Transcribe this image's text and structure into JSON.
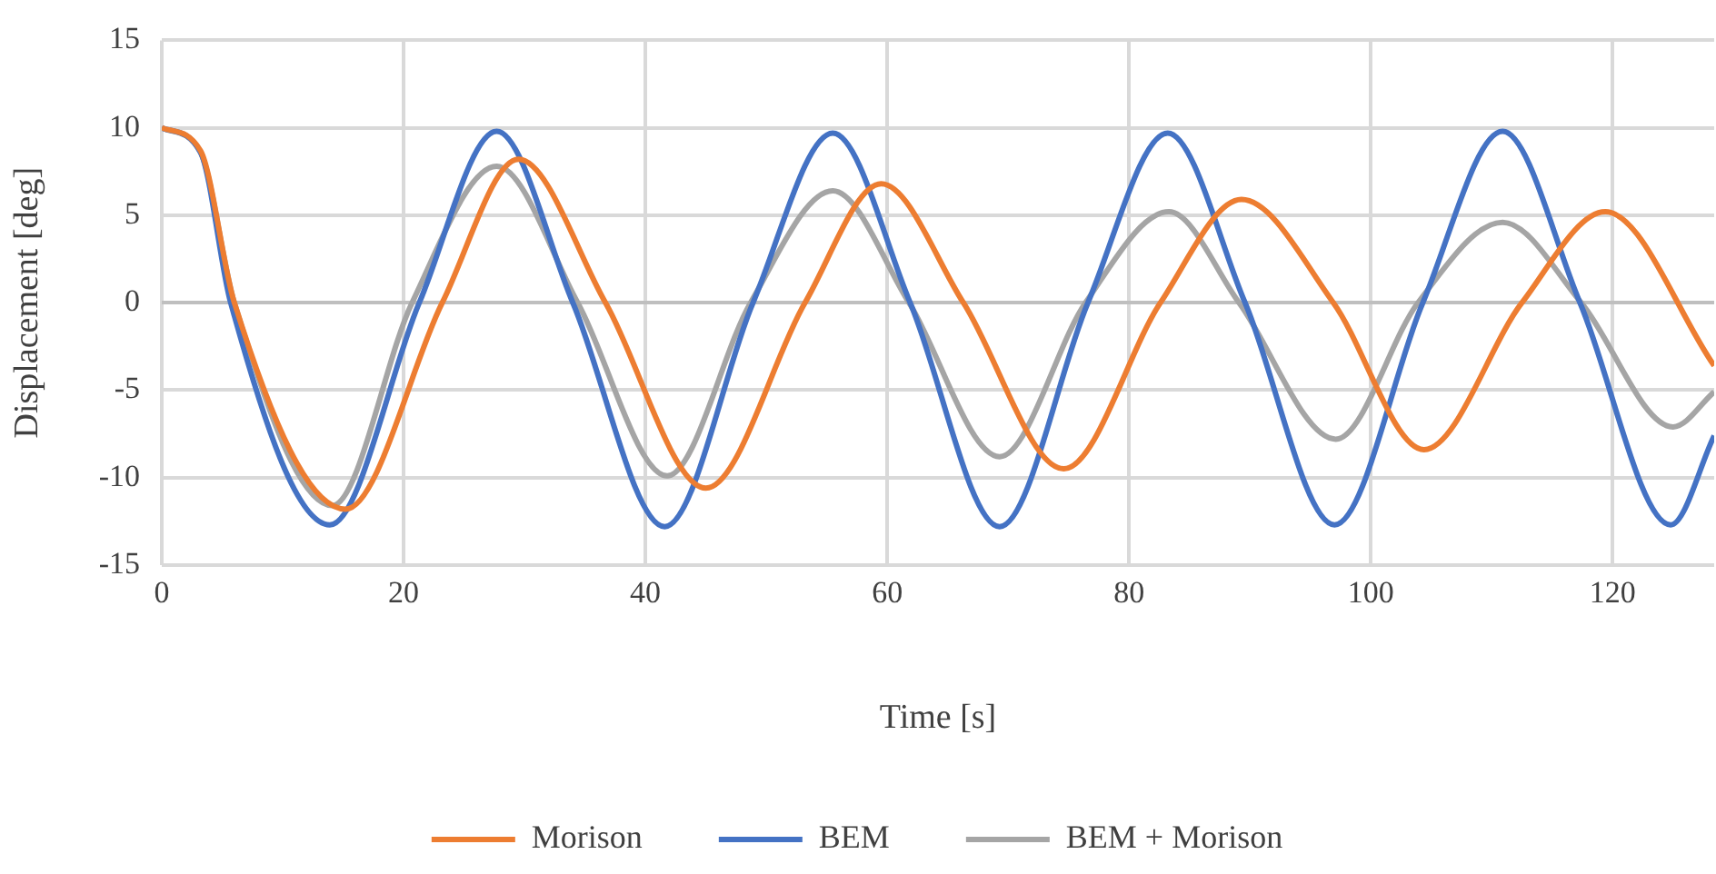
{
  "chart_data": {
    "type": "line",
    "xlabel": "Time [s]",
    "ylabel": "Displacement [deg]",
    "xlim": [
      0,
      128.4
    ],
    "xticks": [
      0,
      20,
      40,
      60,
      80,
      100,
      120
    ],
    "ylim": [
      -15,
      15
    ],
    "yticks": [
      -15,
      -10,
      -5,
      0,
      5,
      10,
      15
    ],
    "grid": true,
    "legend": "bottom",
    "marker": "none",
    "line_style": "solid",
    "series": [
      {
        "name": "Morison",
        "color": "#ed7d31",
        "x": [
          0,
          3.2,
          6.0,
          15.2,
          23.2,
          29.5,
          36.7,
          45.0,
          53.2,
          59.5,
          66.3,
          74.6,
          82.6,
          89.3,
          96.9,
          104.4,
          112.5,
          119.4,
          128.4
        ],
        "values": [
          10,
          8.7,
          0,
          -11.8,
          0,
          8.2,
          0,
          -10.6,
          0,
          6.8,
          0,
          -9.5,
          0,
          5.9,
          0,
          -8.4,
          0,
          5.2,
          -3.6
        ]
      },
      {
        "name": "BEM",
        "color": "#4472c4",
        "x": [
          0,
          3.2,
          5.7,
          13.9,
          21.3,
          27.7,
          34.0,
          41.6,
          48.9,
          55.5,
          61.9,
          69.3,
          76.6,
          83.2,
          89.6,
          97.0,
          104.3,
          110.9,
          117.3,
          124.8,
          128.4
        ],
        "values": [
          10,
          8.6,
          0,
          -12.7,
          0,
          9.8,
          0,
          -12.8,
          0,
          9.7,
          0,
          -12.8,
          0,
          9.7,
          0,
          -12.7,
          0,
          9.8,
          0,
          -12.7,
          -7.6
        ]
      },
      {
        "name": "BEM + Morison",
        "color": "#a5a5a5",
        "x": [
          0,
          3.2,
          6.0,
          14.1,
          20.7,
          27.7,
          34.4,
          41.8,
          48.7,
          55.5,
          61.8,
          69.3,
          76.4,
          83.3,
          89.1,
          97.1,
          103.9,
          110.9,
          117.4,
          125.0,
          128.4
        ],
        "values": [
          10,
          8.6,
          0,
          -11.6,
          0,
          7.8,
          0,
          -9.9,
          0,
          6.4,
          0,
          -8.8,
          0,
          5.2,
          0,
          -7.8,
          0,
          4.6,
          0,
          -7.1,
          -5.1
        ]
      }
    ]
  }
}
